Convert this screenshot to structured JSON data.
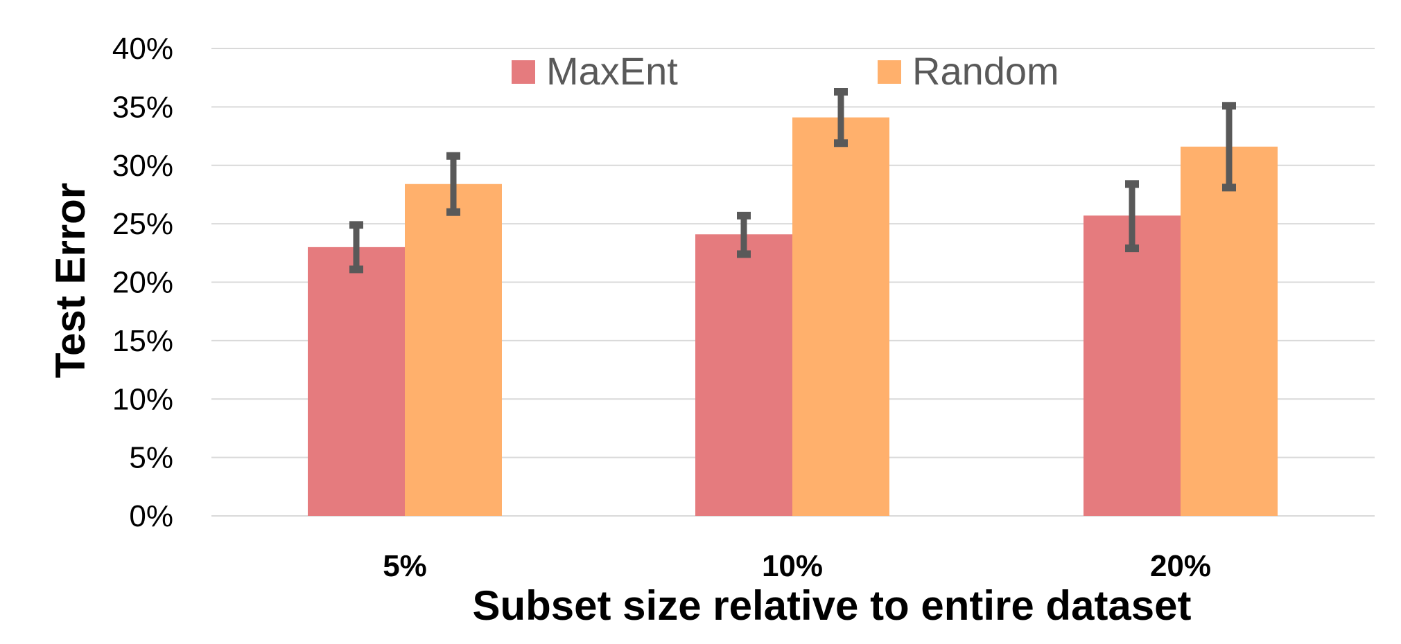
{
  "chart_data": {
    "type": "bar",
    "title": "",
    "xlabel": "Subset size relative to entire dataset",
    "ylabel": "Test Error",
    "categories": [
      "5%",
      "10%",
      "20%"
    ],
    "ylim": [
      0,
      40
    ],
    "ytick_labels": [
      "0%",
      "5%",
      "10%",
      "15%",
      "20%",
      "25%",
      "30%",
      "35%",
      "40%"
    ],
    "grid": true,
    "legend_position": "top-center",
    "series": [
      {
        "name": "MaxEnt",
        "color": "#E57B7E",
        "values": [
          23.0,
          24.1,
          25.7
        ],
        "error_low": [
          21.1,
          22.4,
          22.9
        ],
        "error_high": [
          24.9,
          25.7,
          28.4
        ]
      },
      {
        "name": "Random",
        "color": "#FFB06C",
        "values": [
          28.4,
          34.1,
          31.6
        ],
        "error_low": [
          26.0,
          31.9,
          28.1
        ],
        "error_high": [
          30.8,
          36.3,
          35.1
        ]
      }
    ],
    "error_bar_color": "#595959",
    "gridline_color": "#D9D9D9"
  }
}
